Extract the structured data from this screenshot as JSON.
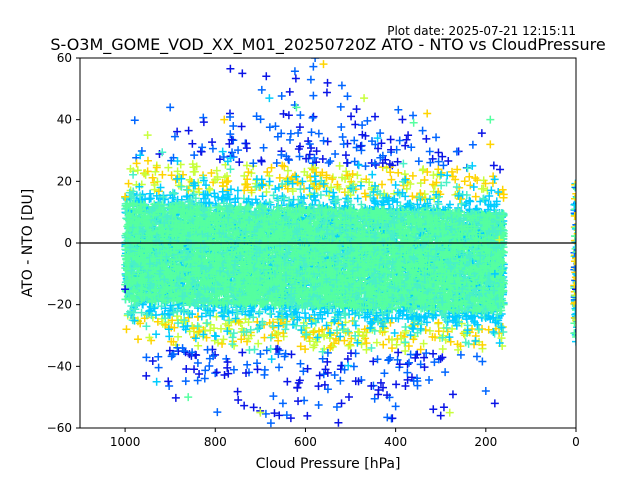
{
  "header": {
    "plot_date": "Plot date: 2025-07-21 12:15:11",
    "title": "S-O3M_GOME_VOD_XX_M01_20250720Z ATO - NTO vs CloudPressure"
  },
  "chart_data": {
    "type": "scatter",
    "title": "S-O3M_GOME_VOD_XX_M01_20250720Z ATO - NTO vs CloudPressure",
    "xlabel": "Cloud Pressure [hPa]",
    "ylabel": "ATO - NTO [DU]",
    "xlim": [
      1100,
      0
    ],
    "ylim": [
      -60,
      60
    ],
    "x_ticks": [
      1000,
      800,
      600,
      400,
      200,
      0
    ],
    "y_ticks": [
      -60,
      -40,
      -20,
      0,
      20,
      40,
      60
    ],
    "x_tick_labels": [
      "1000",
      "800",
      "600",
      "400",
      "200",
      "0"
    ],
    "y_tick_labels": [
      "−60",
      "−40",
      "−20",
      "0",
      "20",
      "40",
      "60"
    ],
    "reference_line_y": 0,
    "marker": "+",
    "grid": false,
    "colors": {
      "core": "#55ffa0",
      "dense": "#48f0c8",
      "mid": "#00ccff",
      "outer": "#ffd400",
      "outer_alt": "#c8ff3c",
      "extreme": "#0a14e6",
      "extreme_alt": "#0066ff"
    },
    "point_cloud": {
      "x_range": [
        160,
        1000
      ],
      "central_band_y": [
        -20,
        15
      ],
      "outer_extent_y": [
        -57,
        57
      ]
    },
    "notable_points": [
      {
        "x": 1000,
        "y": 15
      },
      {
        "x": 1000,
        "y": -15
      },
      {
        "x": 950,
        "y": 35
      },
      {
        "x": 930,
        "y": -45
      },
      {
        "x": 900,
        "y": 44
      },
      {
        "x": 860,
        "y": -50
      },
      {
        "x": 780,
        "y": 40
      },
      {
        "x": 740,
        "y": 55
      },
      {
        "x": 700,
        "y": -55
      },
      {
        "x": 680,
        "y": 47
      },
      {
        "x": 650,
        "y": -52
      },
      {
        "x": 620,
        "y": 44
      },
      {
        "x": 560,
        "y": 58
      },
      {
        "x": 520,
        "y": -52
      },
      {
        "x": 470,
        "y": 47
      },
      {
        "x": 440,
        "y": 34
      },
      {
        "x": 400,
        "y": -53
      },
      {
        "x": 360,
        "y": 39
      },
      {
        "x": 330,
        "y": 42
      },
      {
        "x": 300,
        "y": -56
      },
      {
        "x": 280,
        "y": -55
      },
      {
        "x": 230,
        "y": 25
      },
      {
        "x": 200,
        "y": -48
      },
      {
        "x": 190,
        "y": 40
      },
      {
        "x": 190,
        "y": 32
      },
      {
        "x": 180,
        "y": -52
      },
      {
        "x": 170,
        "y": 1
      },
      {
        "x": 180,
        "y": -10
      },
      {
        "x": 0,
        "y": 18
      },
      {
        "x": 0,
        "y": 5
      },
      {
        "x": 0,
        "y": -5
      },
      {
        "x": 0,
        "y": -15
      },
      {
        "x": 0,
        "y": -25
      },
      {
        "x": 0,
        "y": -32
      }
    ]
  }
}
